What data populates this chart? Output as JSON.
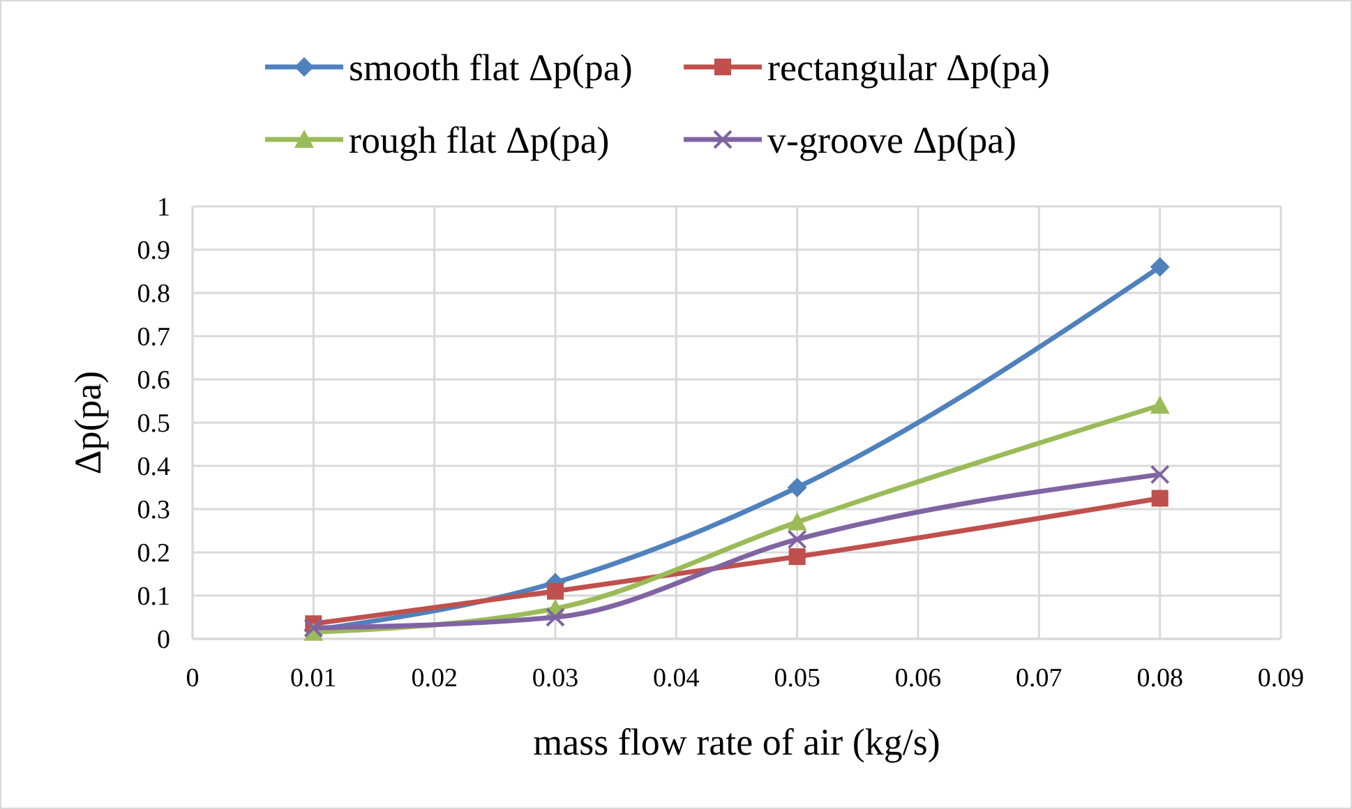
{
  "chart_data": {
    "type": "line",
    "xlabel": "mass flow rate of air (kg/s)",
    "ylabel": "Δp(pa)",
    "x": [
      0.01,
      0.03,
      0.05,
      0.08
    ],
    "series": [
      {
        "name": "smooth flat Δp(pa)",
        "color": "#4f81bd",
        "marker": "diamond",
        "values": [
          0.02,
          0.13,
          0.35,
          0.86
        ]
      },
      {
        "name": "rectangular Δp(pa)",
        "color": "#c0504d",
        "marker": "square",
        "values": [
          0.035,
          0.11,
          0.19,
          0.325
        ]
      },
      {
        "name": "rough flat Δp(pa)",
        "color": "#9bbb59",
        "marker": "triangle",
        "values": [
          0.015,
          0.07,
          0.27,
          0.54
        ]
      },
      {
        "name": "v-groove Δp(pa)",
        "color": "#8064a2",
        "marker": "cross",
        "values": [
          0.025,
          0.05,
          0.23,
          0.38
        ]
      }
    ],
    "xlim": [
      0,
      0.09
    ],
    "xticks": [
      0,
      0.01,
      0.02,
      0.03,
      0.04,
      0.05,
      0.06,
      0.07,
      0.08,
      0.09
    ],
    "ylim": [
      0,
      1
    ],
    "yticks": [
      0,
      0.1,
      0.2,
      0.3,
      0.4,
      0.5,
      0.6,
      0.7,
      0.8,
      0.9,
      1
    ],
    "grid": true,
    "legend": "top",
    "line_style": "solid"
  }
}
